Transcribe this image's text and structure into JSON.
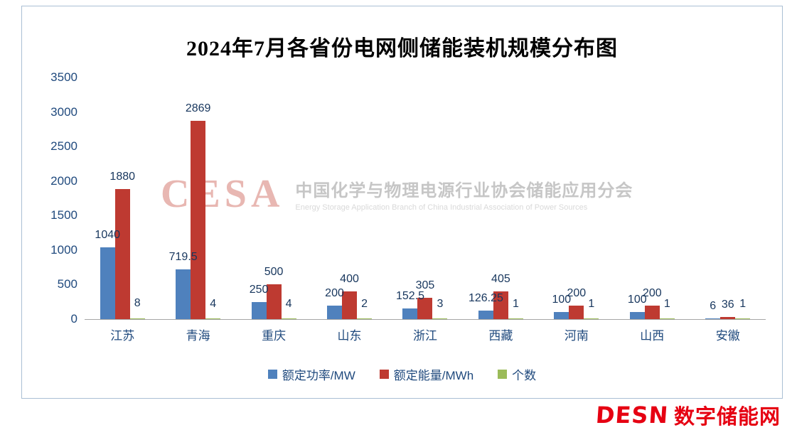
{
  "watermark": {
    "logo": "CESA",
    "cn": "中国化学与物理电源行业协会储能应用分会",
    "en": "Energy Storage Application Branch of China Industrial Association of Power Sources"
  },
  "footer": {
    "brand": "DESN",
    "name": "数字储能网"
  },
  "chart_data": {
    "type": "bar",
    "title": "2024年7月各省份电网侧储能装机规模分布图",
    "categories": [
      "江苏",
      "青海",
      "重庆",
      "山东",
      "浙江",
      "西藏",
      "河南",
      "山西",
      "安徽"
    ],
    "series": [
      {
        "name": "额定功率/MW",
        "color": "#4f81bd",
        "values": [
          1040,
          719.5,
          250,
          200,
          152.5,
          126.25,
          100,
          100,
          6
        ]
      },
      {
        "name": "额定能量/MWh",
        "color": "#be3a31",
        "values": [
          1880,
          2869,
          500,
          400,
          305,
          405,
          200,
          200,
          36
        ]
      },
      {
        "name": "个数",
        "color": "#9bbb59",
        "values": [
          8,
          4,
          4,
          2,
          3,
          1,
          1,
          1,
          1
        ]
      }
    ],
    "ylim": [
      0,
      3500
    ],
    "yticks": [
      0,
      500,
      1000,
      1500,
      2000,
      2500,
      3000,
      3500
    ],
    "grid": false,
    "legend_position": "bottom"
  }
}
